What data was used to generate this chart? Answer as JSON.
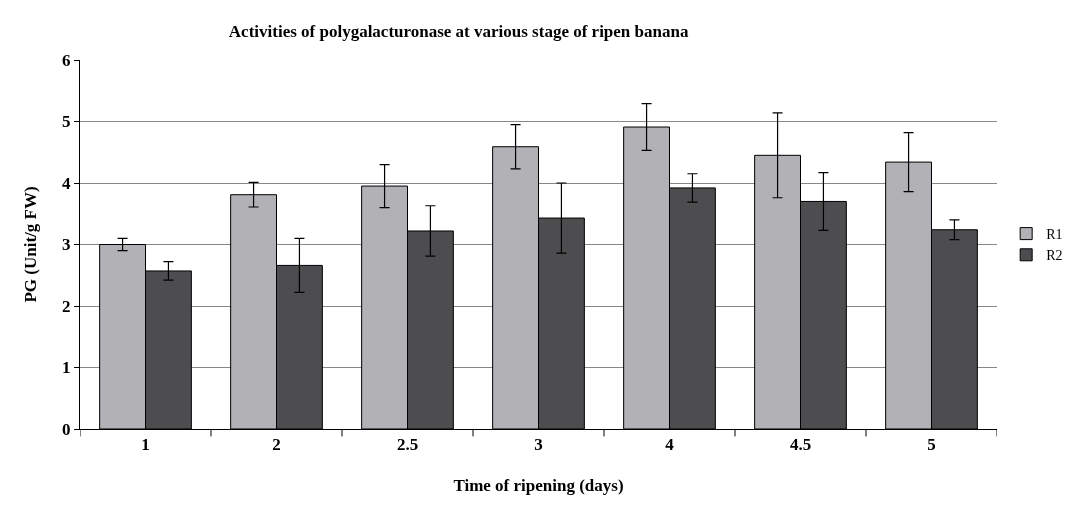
{
  "chart_data": {
    "type": "bar",
    "title": "Activities of polygalacturonase at various stage of ripen banana",
    "xlabel": "Time of ripening (days)",
    "ylabel": "PG (Unit/g FW)",
    "categories": [
      "1",
      "2",
      "2.5",
      "3",
      "4",
      "4.5",
      "5"
    ],
    "series": [
      {
        "name": "R1",
        "color": "#b2b2b6",
        "values": [
          3.0,
          3.81,
          3.95,
          4.59,
          4.91,
          4.45,
          4.34
        ],
        "errors": [
          0.1,
          0.2,
          0.35,
          0.36,
          0.38,
          0.69,
          0.48
        ]
      },
      {
        "name": "R2",
        "color": "#4d4d4f",
        "values": [
          2.57,
          2.66,
          3.22,
          3.43,
          3.92,
          3.7,
          3.24
        ],
        "errors": [
          0.15,
          0.44,
          0.41,
          0.57,
          0.23,
          0.47,
          0.16
        ]
      }
    ],
    "ylim": [
      0,
      6
    ],
    "yticks": [
      0,
      1,
      2,
      3,
      4,
      5,
      6
    ],
    "grid": "y",
    "legend": "right"
  }
}
